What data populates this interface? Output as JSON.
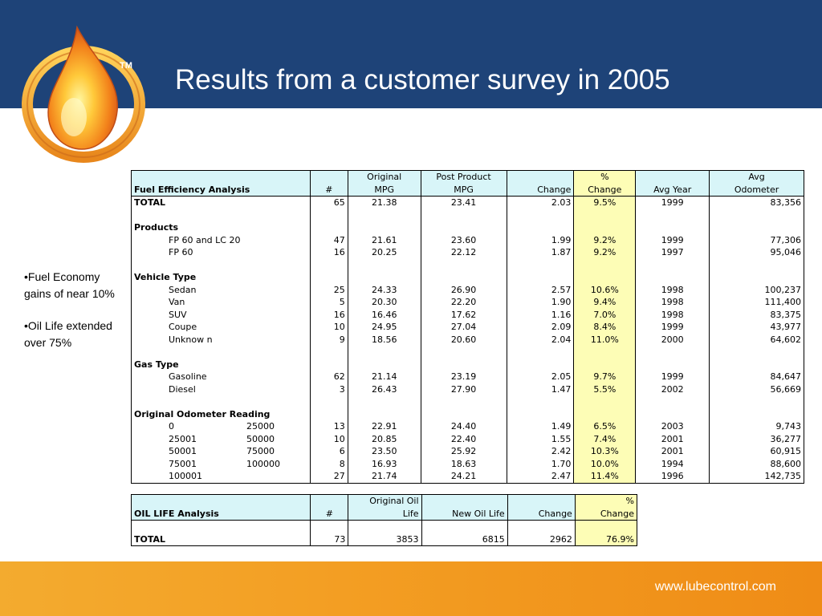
{
  "slide": {
    "title": "Results from a customer survey in 2005",
    "trademark": "TM",
    "footer_url": "www.lubecontrol.com",
    "colors": {
      "header": "#1e4378",
      "footer": "#f39d22",
      "table_header": "#d8f5f8",
      "highlight": "#fdfdb6"
    }
  },
  "bullets": [
    "•Fuel Economy gains of near 10%",
    "•Oil Life extended over 75%"
  ],
  "fuel_table": {
    "headers_top": [
      "",
      "",
      "Original",
      "Post Product",
      "",
      "%",
      "",
      "Avg"
    ],
    "headers_bottom": [
      "Fuel Efficiency Analysis",
      "#",
      "MPG",
      "MPG",
      "Change",
      "Change",
      "Avg Year",
      "Odometer"
    ],
    "total": [
      "TOTAL",
      "65",
      "21.38",
      "23.41",
      "2.03",
      "9.5%",
      "1999",
      "83,356"
    ],
    "groups": [
      {
        "title": "Products",
        "rows": [
          [
            "FP 60 and LC 20",
            "",
            "47",
            "21.61",
            "23.60",
            "1.99",
            "9.2%",
            "1999",
            "77,306"
          ],
          [
            "FP 60",
            "",
            "16",
            "20.25",
            "22.12",
            "1.87",
            "9.2%",
            "1997",
            "95,046"
          ]
        ]
      },
      {
        "title": "Vehicle Type",
        "rows": [
          [
            "Sedan",
            "",
            "25",
            "24.33",
            "26.90",
            "2.57",
            "10.6%",
            "1998",
            "100,237"
          ],
          [
            "Van",
            "",
            "5",
            "20.30",
            "22.20",
            "1.90",
            "9.4%",
            "1998",
            "111,400"
          ],
          [
            "SUV",
            "",
            "16",
            "16.46",
            "17.62",
            "1.16",
            "7.0%",
            "1998",
            "83,375"
          ],
          [
            "Coupe",
            "",
            "10",
            "24.95",
            "27.04",
            "2.09",
            "8.4%",
            "1999",
            "43,977"
          ],
          [
            "Unknow n",
            "",
            "9",
            "18.56",
            "20.60",
            "2.04",
            "11.0%",
            "2000",
            "64,602"
          ]
        ]
      },
      {
        "title": "Gas Type",
        "rows": [
          [
            "Gasoline",
            "",
            "62",
            "21.14",
            "23.19",
            "2.05",
            "9.7%",
            "1999",
            "84,647"
          ],
          [
            "Diesel",
            "",
            "3",
            "26.43",
            "27.90",
            "1.47",
            "5.5%",
            "2002",
            "56,669"
          ]
        ]
      },
      {
        "title": "Original Odometer Reading",
        "rows": [
          [
            "0",
            "25000",
            "13",
            "22.91",
            "24.40",
            "1.49",
            "6.5%",
            "2003",
            "9,743"
          ],
          [
            "25001",
            "50000",
            "10",
            "20.85",
            "22.40",
            "1.55",
            "7.4%",
            "2001",
            "36,277"
          ],
          [
            "50001",
            "75000",
            "6",
            "23.50",
            "25.92",
            "2.42",
            "10.3%",
            "2001",
            "60,915"
          ],
          [
            "75001",
            "100000",
            "8",
            "16.93",
            "18.63",
            "1.70",
            "10.0%",
            "1994",
            "88,600"
          ],
          [
            "100001",
            "",
            "27",
            "21.74",
            "24.21",
            "2.47",
            "11.4%",
            "1996",
            "142,735"
          ]
        ]
      }
    ]
  },
  "oil_table": {
    "headers_top": [
      "",
      "",
      "Original Oil",
      "",
      "",
      "%"
    ],
    "headers_bottom": [
      "OIL LIFE Analysis",
      "#",
      "Life",
      "New  Oil Life",
      "Change",
      "Change"
    ],
    "total": [
      "TOTAL",
      "73",
      "3853",
      "6815",
      "2962",
      "76.9%"
    ]
  }
}
